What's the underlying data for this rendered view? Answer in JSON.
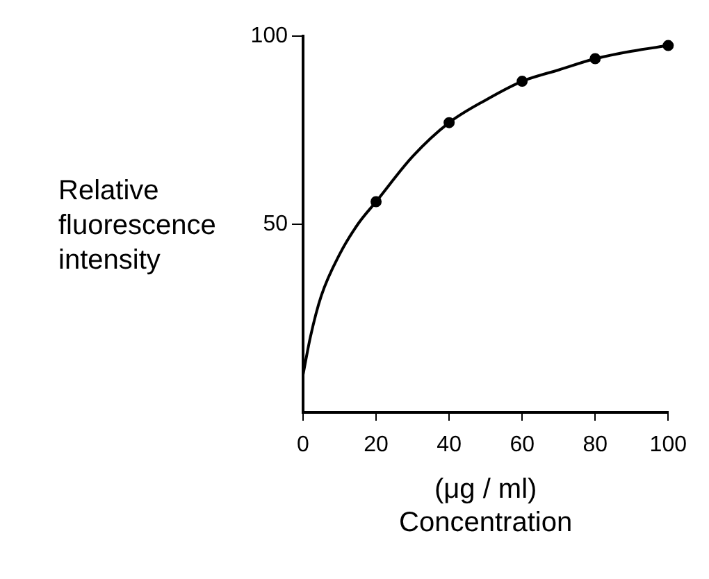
{
  "chart_data": {
    "type": "line",
    "xlabel": "(μg / ml) Concentration",
    "ylabel": "Relative fluorescence intensity",
    "xlim": [
      0,
      100
    ],
    "xticks": [
      0,
      20,
      40,
      60,
      80,
      100
    ],
    "ylim": [
      0,
      100
    ],
    "yticks": [
      50,
      100
    ],
    "series": [
      {
        "type": "line",
        "color": "#000000",
        "marker": "none",
        "x": [
          0,
          2,
          5,
          10,
          15,
          20,
          30,
          40,
          50,
          60,
          70,
          80,
          90,
          100
        ],
        "values": [
          10,
          20,
          31,
          42,
          50,
          56,
          68,
          77,
          83,
          88,
          91,
          94,
          96,
          97.5
        ]
      },
      {
        "type": "scatter",
        "color": "#000000",
        "marker": "circle",
        "x": [
          20,
          40,
          60,
          80,
          100
        ],
        "values": [
          56,
          77,
          88,
          94,
          97.5
        ]
      }
    ]
  }
}
